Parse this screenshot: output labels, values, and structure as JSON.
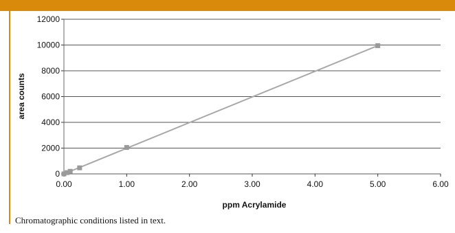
{
  "colors": {
    "accent": "#d98a0b",
    "gridline": "#555555",
    "series_line": "#a8a8a8",
    "marker": "#9a9a9a"
  },
  "caption": "Chromatographic conditions listed in text.",
  "chart_data": {
    "type": "scatter",
    "title": "",
    "xlabel": "ppm Acrylamide",
    "ylabel": "area counts",
    "xlim": [
      0,
      6
    ],
    "ylim": [
      0,
      12000
    ],
    "x_ticks": [
      "0.00",
      "1.00",
      "2.00",
      "3.00",
      "4.00",
      "5.00",
      "6.00"
    ],
    "y_ticks": [
      "0",
      "2000",
      "4000",
      "6000",
      "8000",
      "10000",
      "12000"
    ],
    "grid": true,
    "legend": "none",
    "series": [
      {
        "x": [
          0.0,
          0.05,
          0.1,
          0.25,
          1.0,
          5.0
        ],
        "y": [
          0,
          100,
          200,
          470,
          2050,
          9950
        ],
        "trendline": [
          [
            0,
            0
          ],
          [
            5,
            9950
          ]
        ]
      }
    ]
  }
}
